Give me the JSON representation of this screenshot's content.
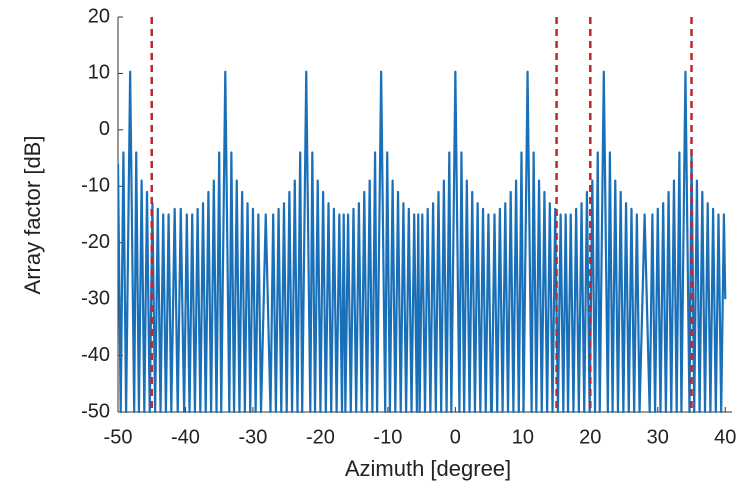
{
  "chart_data": {
    "type": "line",
    "xlabel": "Azimuth [degree]",
    "ylabel": "Array factor [dB]",
    "xlim": [
      -50,
      41
    ],
    "ylim": [
      -50,
      20
    ],
    "xticks": [
      -50,
      -40,
      -30,
      -20,
      -10,
      0,
      10,
      20,
      30,
      40
    ],
    "yticks": [
      -50,
      -40,
      -30,
      -20,
      -10,
      0,
      10,
      20
    ],
    "grid": false,
    "color": "#1a70b8",
    "x": [
      -50.0,
      -49.6,
      -49.2,
      -48.8,
      -48.2,
      -47.6,
      -47.3,
      -46.9,
      -46.5,
      -46.1,
      -45.7,
      -45.3,
      -44.9,
      -44.5,
      -44.1,
      -43.7,
      -43.3,
      -42.9,
      -42.5,
      -42.1,
      -41.6,
      -41.15,
      -40.7,
      -40.2,
      -39.8,
      -39.4,
      -39.0,
      -38.6,
      -38.2,
      -37.8,
      -37.4,
      -37.0,
      -36.6,
      -36.2,
      -35.8,
      -35.4,
      -35.0,
      -34.7,
      -34.1,
      -33.5,
      -33.2,
      -32.8,
      -32.4,
      -32.0,
      -31.6,
      -31.2,
      -30.8,
      -30.4,
      -30.0,
      -29.6,
      -29.2,
      -28.8,
      -28.1,
      -27.4,
      -27.0,
      -26.6,
      -26.2,
      -25.8,
      -25.4,
      -25.0,
      -24.6,
      -24.2,
      -23.8,
      -23.4,
      -23.0,
      -22.7,
      -22.1,
      -21.5,
      -21.2,
      -20.8,
      -20.4,
      -20.0,
      -19.6,
      -19.2,
      -18.8,
      -18.4,
      -18.0,
      -17.6,
      -17.2,
      -16.8,
      -16.55,
      -16.3,
      -15.9,
      -15.5,
      -15.1,
      -14.7,
      -14.3,
      -13.9,
      -13.5,
      -13.1,
      -12.7,
      -12.3,
      -11.9,
      -11.6,
      -11.0,
      -10.4,
      -10.1,
      -9.7,
      -9.3,
      -8.9,
      -8.5,
      -8.1,
      -7.7,
      -7.3,
      -6.9,
      -6.5,
      -6.1,
      -5.7,
      -5.5,
      -5.3,
      -4.9,
      -4.5,
      -4.1,
      -3.7,
      -3.3,
      -2.9,
      -2.5,
      -2.1,
      -1.7,
      -1.3,
      -0.9,
      -0.6,
      0,
      0.6,
      0.9,
      1.3,
      1.7,
      2.1,
      2.5,
      2.9,
      3.3,
      3.7,
      4.1,
      4.5,
      4.9,
      5.3,
      5.4,
      5.8,
      6.2,
      6.6,
      7.0,
      7.4,
      7.8,
      8.2,
      8.6,
      9.0,
      9.4,
      9.8,
      10.1,
      10.7,
      11.3,
      11.6,
      12.0,
      12.4,
      12.8,
      13.2,
      13.6,
      14.0,
      14.4,
      14.8,
      15.2,
      15.6,
      16.0,
      16.35,
      16.7,
      17.1,
      17.5,
      17.9,
      18.3,
      18.7,
      19.1,
      19.5,
      19.9,
      20.3,
      20.7,
      21.1,
      21.4,
      22.0,
      22.6,
      22.9,
      23.3,
      23.7,
      24.1,
      24.5,
      24.9,
      25.3,
      25.7,
      26.1,
      26.5,
      26.9,
      27.3,
      28.05,
      28.8,
      29.2,
      29.6,
      30.0,
      30.4,
      30.8,
      31.2,
      31.6,
      32.0,
      32.4,
      32.8,
      33.2,
      33.5,
      34.1,
      34.7,
      35.0,
      35.4,
      35.8,
      36.2,
      36.6,
      37.0,
      37.4,
      37.8,
      38.2,
      38.6,
      39.0,
      39.4,
      39.8,
      40.0
    ],
    "values": [
      -6,
      -50,
      -4,
      -50,
      10.3,
      -50,
      -4,
      -50,
      -9,
      -50,
      -11,
      -50,
      -13,
      -50,
      -14,
      -50,
      -15,
      -50,
      -15,
      -50,
      -14,
      -50,
      -14,
      -50,
      -15,
      -50,
      -15,
      -50,
      -14,
      -50,
      -13,
      -50,
      -11,
      -50,
      -9,
      -50,
      -4,
      -50,
      10.3,
      -50,
      -4,
      -50,
      -9,
      -50,
      -11,
      -50,
      -13,
      -50,
      -14,
      -50,
      -15,
      -50,
      -15,
      -50,
      -15,
      -50,
      -14,
      -50,
      -13,
      -50,
      -11,
      -50,
      -9,
      -50,
      -4,
      -50,
      10.3,
      -50,
      -4,
      -50,
      -9,
      -50,
      -11,
      -50,
      -13,
      -50,
      -14,
      -50,
      -15,
      -50,
      -15,
      -50,
      -15,
      -50,
      -14,
      -50,
      -13,
      -50,
      -11,
      -50,
      -9,
      -50,
      -4,
      -50,
      10.3,
      -50,
      -4,
      -50,
      -9,
      -50,
      -11,
      -50,
      -13,
      -50,
      -14,
      -50,
      -15,
      -50,
      -15,
      -50,
      -15,
      -50,
      -14,
      -50,
      -13,
      -50,
      -11,
      -50,
      -9,
      -50,
      -4,
      -50,
      10.3,
      -50,
      -4,
      -50,
      -9,
      -50,
      -11,
      -50,
      -13,
      -50,
      -14,
      -50,
      -15,
      -50,
      -50,
      -15,
      -50,
      -14,
      -50,
      -13,
      -50,
      -11,
      -50,
      -9,
      -50,
      -4,
      -50,
      10.3,
      -50,
      -4,
      -50,
      -9,
      -50,
      -11,
      -50,
      -13,
      -50,
      -14,
      -50,
      -15,
      -50,
      -15,
      -50,
      -15,
      -50,
      -14,
      -50,
      -13,
      -50,
      -11,
      -50,
      -9,
      -50,
      -4,
      -50,
      10.3,
      -50,
      -4,
      -50,
      -9,
      -50,
      -11,
      -50,
      -13,
      -50,
      -14,
      -50,
      -15,
      -50,
      -15,
      -50,
      -15,
      -50,
      -14,
      -50,
      -13,
      -50,
      -11,
      -50,
      -9,
      -50,
      -4,
      -50,
      10.3,
      -50,
      -4,
      -50,
      -9,
      -50,
      -11,
      -50,
      -13,
      -50,
      -14,
      -50,
      -15,
      -50,
      -15,
      -30
    ],
    "reference_lines": {
      "x": [
        -45,
        15,
        20,
        35
      ],
      "color": "#c0272d",
      "style": "dashed"
    }
  }
}
